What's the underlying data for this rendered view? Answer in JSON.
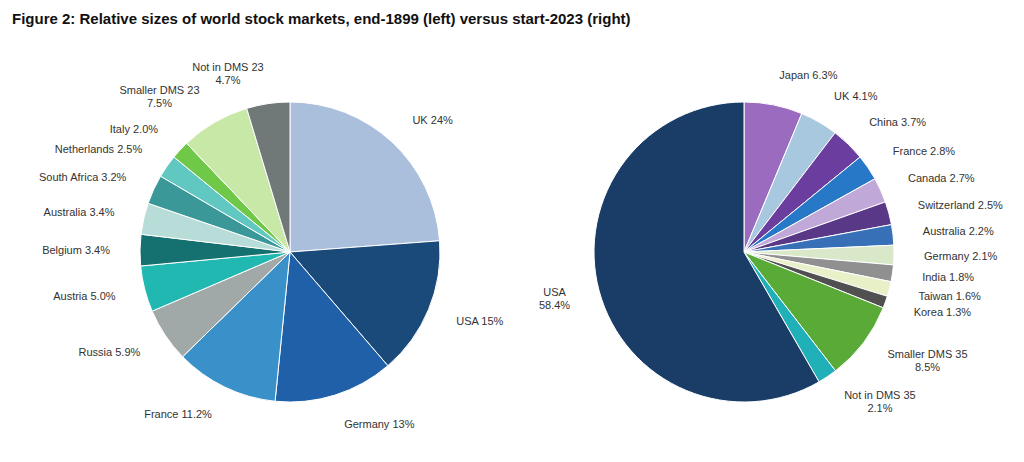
{
  "title": "Figure 2: Relative sizes of world stock markets, end-1899 (left) versus start-2023 (right)",
  "chart_data": [
    {
      "type": "pie",
      "categories": [
        "UK 24%",
        "USA 15%",
        "Germany 13%",
        "France 11.2%",
        "Russia 5.9%",
        "Austria 5.0%",
        "Belgium 3.4%",
        "Australia 3.4%",
        "South Africa 3.2%",
        "Netherlands 2.5%",
        "Italy 2.0%",
        "Smaller DMS 23\n7.5%",
        "Not in DMS 23\n4.7%"
      ],
      "values": [
        24.0,
        15.0,
        13.0,
        11.2,
        5.9,
        5.0,
        3.4,
        3.4,
        3.2,
        2.5,
        2.0,
        7.5,
        4.7
      ],
      "colors": [
        "#aabfdb",
        "#1a4a7a",
        "#2060a8",
        "#3a90c8",
        "#a0a8a8",
        "#20b8b0",
        "#157070",
        "#b8dcd8",
        "#3a9898",
        "#60c8c0",
        "#70c848",
        "#c8e8a8",
        "#707878"
      ]
    },
    {
      "type": "pie",
      "categories": [
        "Japan 6.3%",
        "UK 4.1%",
        "China 3.7%",
        "France 2.8%",
        "Canada 2.7%",
        "Switzerland 2.5%",
        "Australia 2.2%",
        "Germany 2.1%",
        "India 1.8%",
        "Taiwan 1.6%",
        "Korea 1.3%",
        "Smaller DMS 35\n8.5%",
        "Not in DMS 35\n2.1%",
        "USA\n58.4%"
      ],
      "values": [
        6.3,
        4.1,
        3.7,
        2.8,
        2.7,
        2.5,
        2.2,
        2.1,
        1.8,
        1.6,
        1.3,
        8.5,
        2.1,
        58.4
      ],
      "colors": [
        "#9b6bbf",
        "#a8c8e0",
        "#6a3d9f",
        "#2878c8",
        "#c0a8d8",
        "#5a3888",
        "#3870b8",
        "#d8e8c8",
        "#909090",
        "#e8f0c8",
        "#505050",
        "#5aaa38",
        "#20b0b8",
        "#1a3d68"
      ]
    }
  ]
}
